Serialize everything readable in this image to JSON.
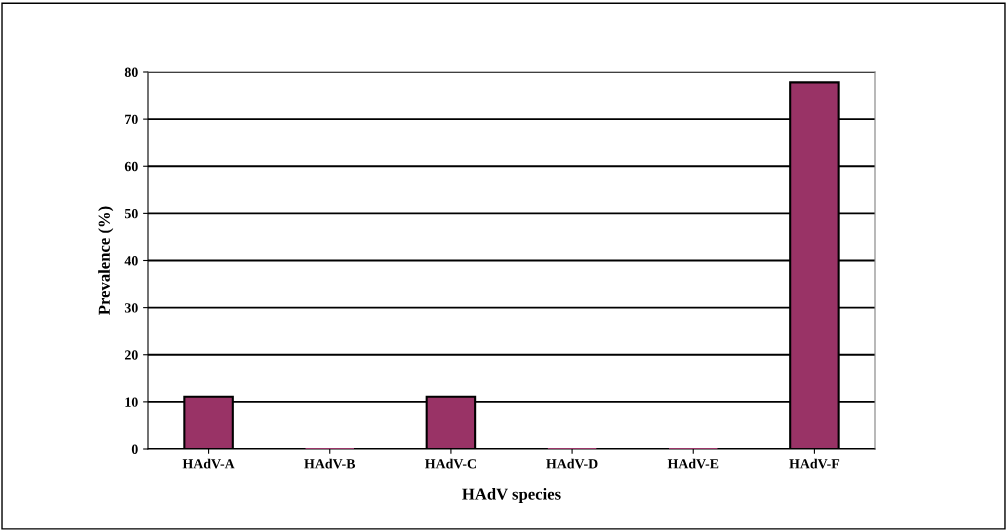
{
  "chart_data": {
    "type": "bar",
    "xlabel": "HAdV species",
    "ylabel": "Prevalence (%)",
    "categories": [
      "HAdV-A",
      "HAdV-B",
      "HAdV-C",
      "HAdV-D",
      "HAdV-E",
      "HAdV-F"
    ],
    "values": [
      11.1,
      0,
      11.1,
      0,
      0,
      77.8
    ],
    "color": "#993366",
    "ylim": [
      0,
      80
    ],
    "yticks": [
      0,
      10,
      20,
      30,
      40,
      50,
      60,
      70,
      80
    ],
    "grid": "y",
    "legend": false
  }
}
